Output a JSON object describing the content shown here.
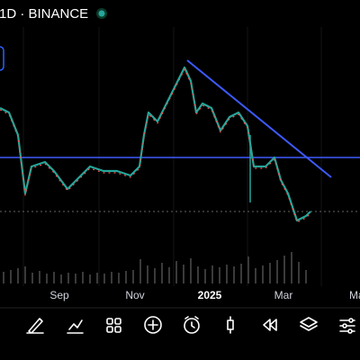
{
  "header": {
    "title": "1D · BINANCE"
  },
  "time_axis": {
    "labels": [
      "Sep",
      "Nov",
      "2025",
      "Mar",
      "Ma"
    ]
  }
}
